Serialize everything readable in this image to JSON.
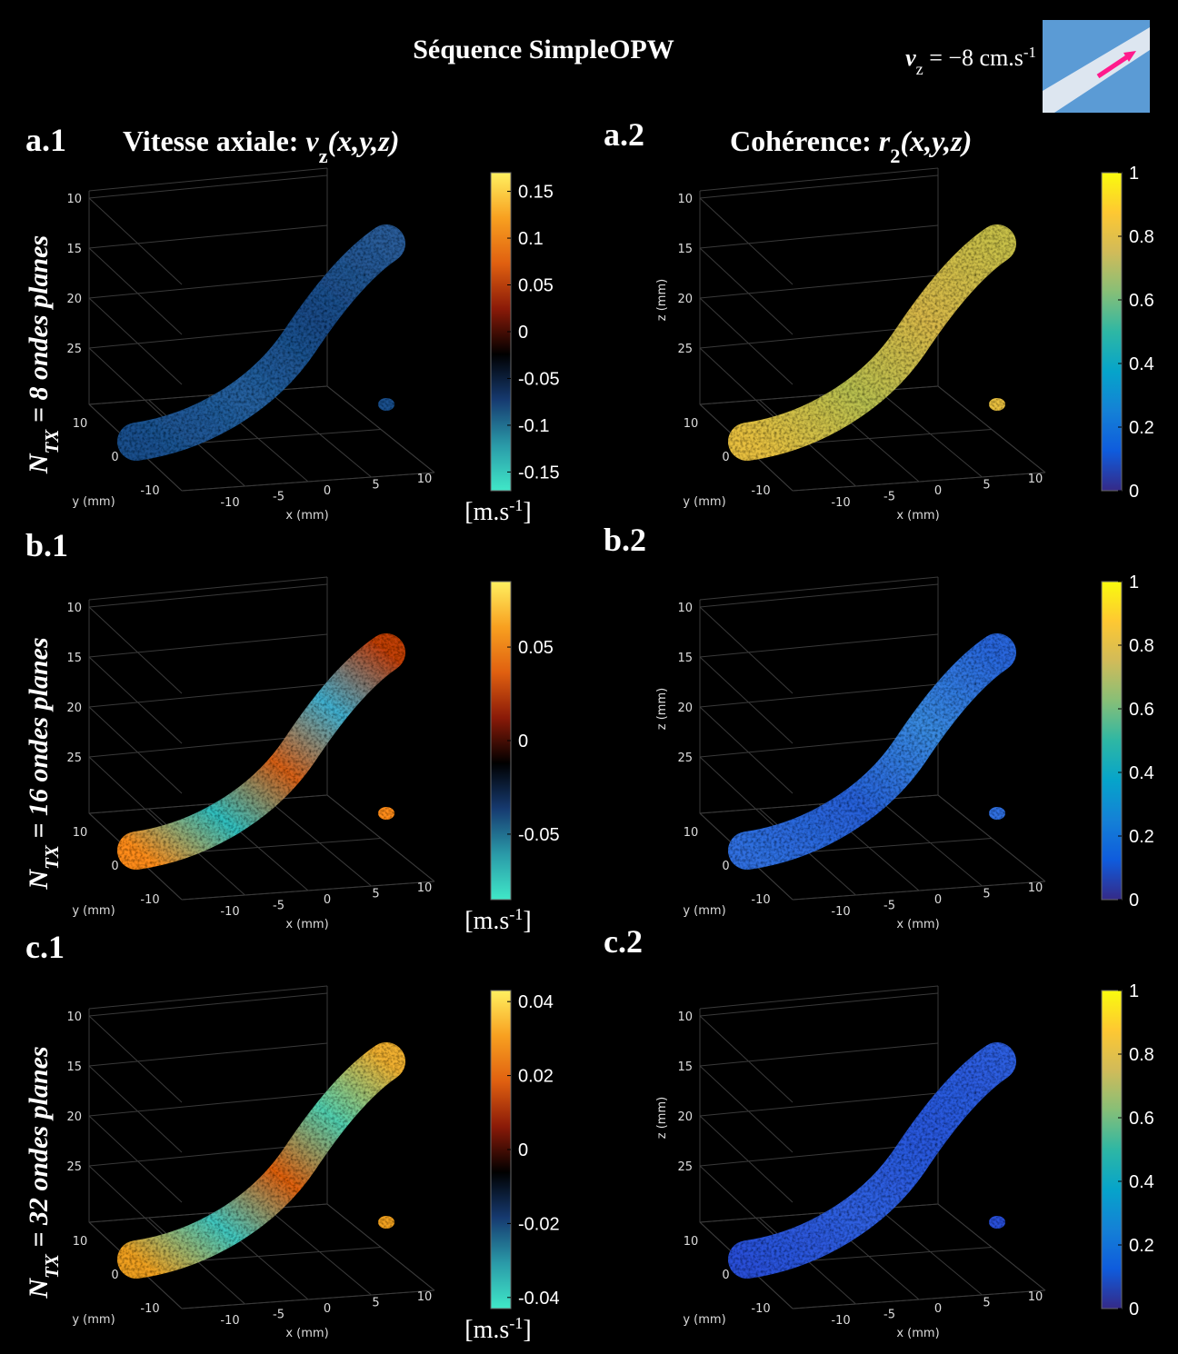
{
  "header": {
    "title": "Séquence SimpleOPW",
    "velocity": {
      "var": "v",
      "sub": "z",
      "rest": " = −8 cm.s",
      "sup": "-1"
    }
  },
  "columns": [
    {
      "title": {
        "text": "Vitesse axiale: ",
        "var": "v",
        "sub": "z",
        "args": "(x,y,z)"
      }
    },
    {
      "title": {
        "text": "Cohérence: ",
        "var": "r",
        "sub": "2",
        "args": "(x,y,z)"
      }
    }
  ],
  "axes": {
    "zticks": [
      10,
      15,
      20,
      25
    ],
    "yticks": [
      10,
      0,
      -10
    ],
    "xticks": [
      -10,
      -5,
      0,
      5,
      10
    ],
    "xlabel": "x (mm)",
    "ylabel": "y (mm)",
    "zlabel": "z (mm)"
  },
  "unit": {
    "base": "[m.s",
    "sup": "-1",
    "end": "]"
  },
  "coherence_colorbar": {
    "lim": [
      0,
      1
    ],
    "ticks": [
      0,
      0.2,
      0.4,
      0.6,
      0.8,
      1
    ]
  },
  "rows": [
    {
      "panel_labels": [
        "a.1",
        "a.2"
      ],
      "row_label": {
        "pre": "N",
        "sub": "TX",
        "rest": " = 8 ondes planes"
      },
      "velocity_colorbar": {
        "lim": [
          -0.17,
          0.17
        ],
        "ticks": [
          0.15,
          0.1,
          0.05,
          0,
          -0.05,
          -0.1,
          -0.15
        ]
      }
    },
    {
      "panel_labels": [
        "b.1",
        "b.2"
      ],
      "row_label": {
        "pre": "N",
        "sub": "TX",
        "rest": " = 16 ondes planes"
      },
      "velocity_colorbar": {
        "lim": [
          -0.085,
          0.085
        ],
        "ticks": [
          0.05,
          0,
          -0.05
        ]
      }
    },
    {
      "panel_labels": [
        "c.1",
        "c.2"
      ],
      "row_label": {
        "pre": "N",
        "sub": "TX",
        "rest": " = 32 ondes planes"
      },
      "velocity_colorbar": {
        "lim": [
          -0.043,
          0.043
        ],
        "ticks": [
          0.04,
          0.02,
          0,
          -0.02,
          -0.04
        ]
      }
    }
  ]
}
